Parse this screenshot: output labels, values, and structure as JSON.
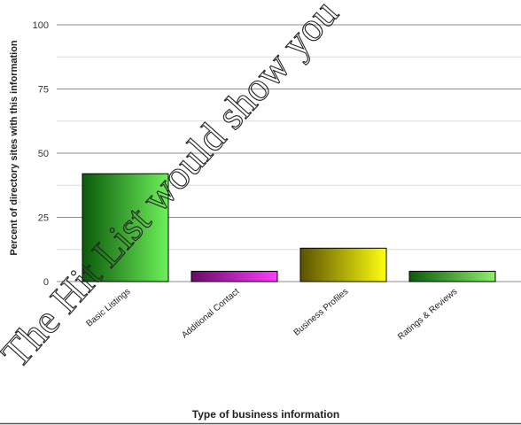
{
  "chart_data": {
    "type": "bar",
    "categories": [
      "Basic Listings",
      "Additional Contact",
      "Business Profiles",
      "Ratings & Reviews"
    ],
    "values": [
      42,
      4,
      13,
      4
    ],
    "xlabel": "Type of business information",
    "ylabel": "Percent of directory sites with this information",
    "ylim": [
      0,
      100
    ],
    "yticks": [
      0,
      25,
      50,
      75,
      100
    ],
    "grid": true,
    "bar_gradients": [
      {
        "dark": "#0b5a0b",
        "light": "#6ef05a"
      },
      {
        "dark": "#6a0a6a",
        "light": "#ff3cff"
      },
      {
        "dark": "#5a5200",
        "light": "#ffff10"
      },
      {
        "dark": "#0b5a0b",
        "light": "#8cf06a"
      }
    ]
  },
  "watermark": "The Hit List would show you"
}
